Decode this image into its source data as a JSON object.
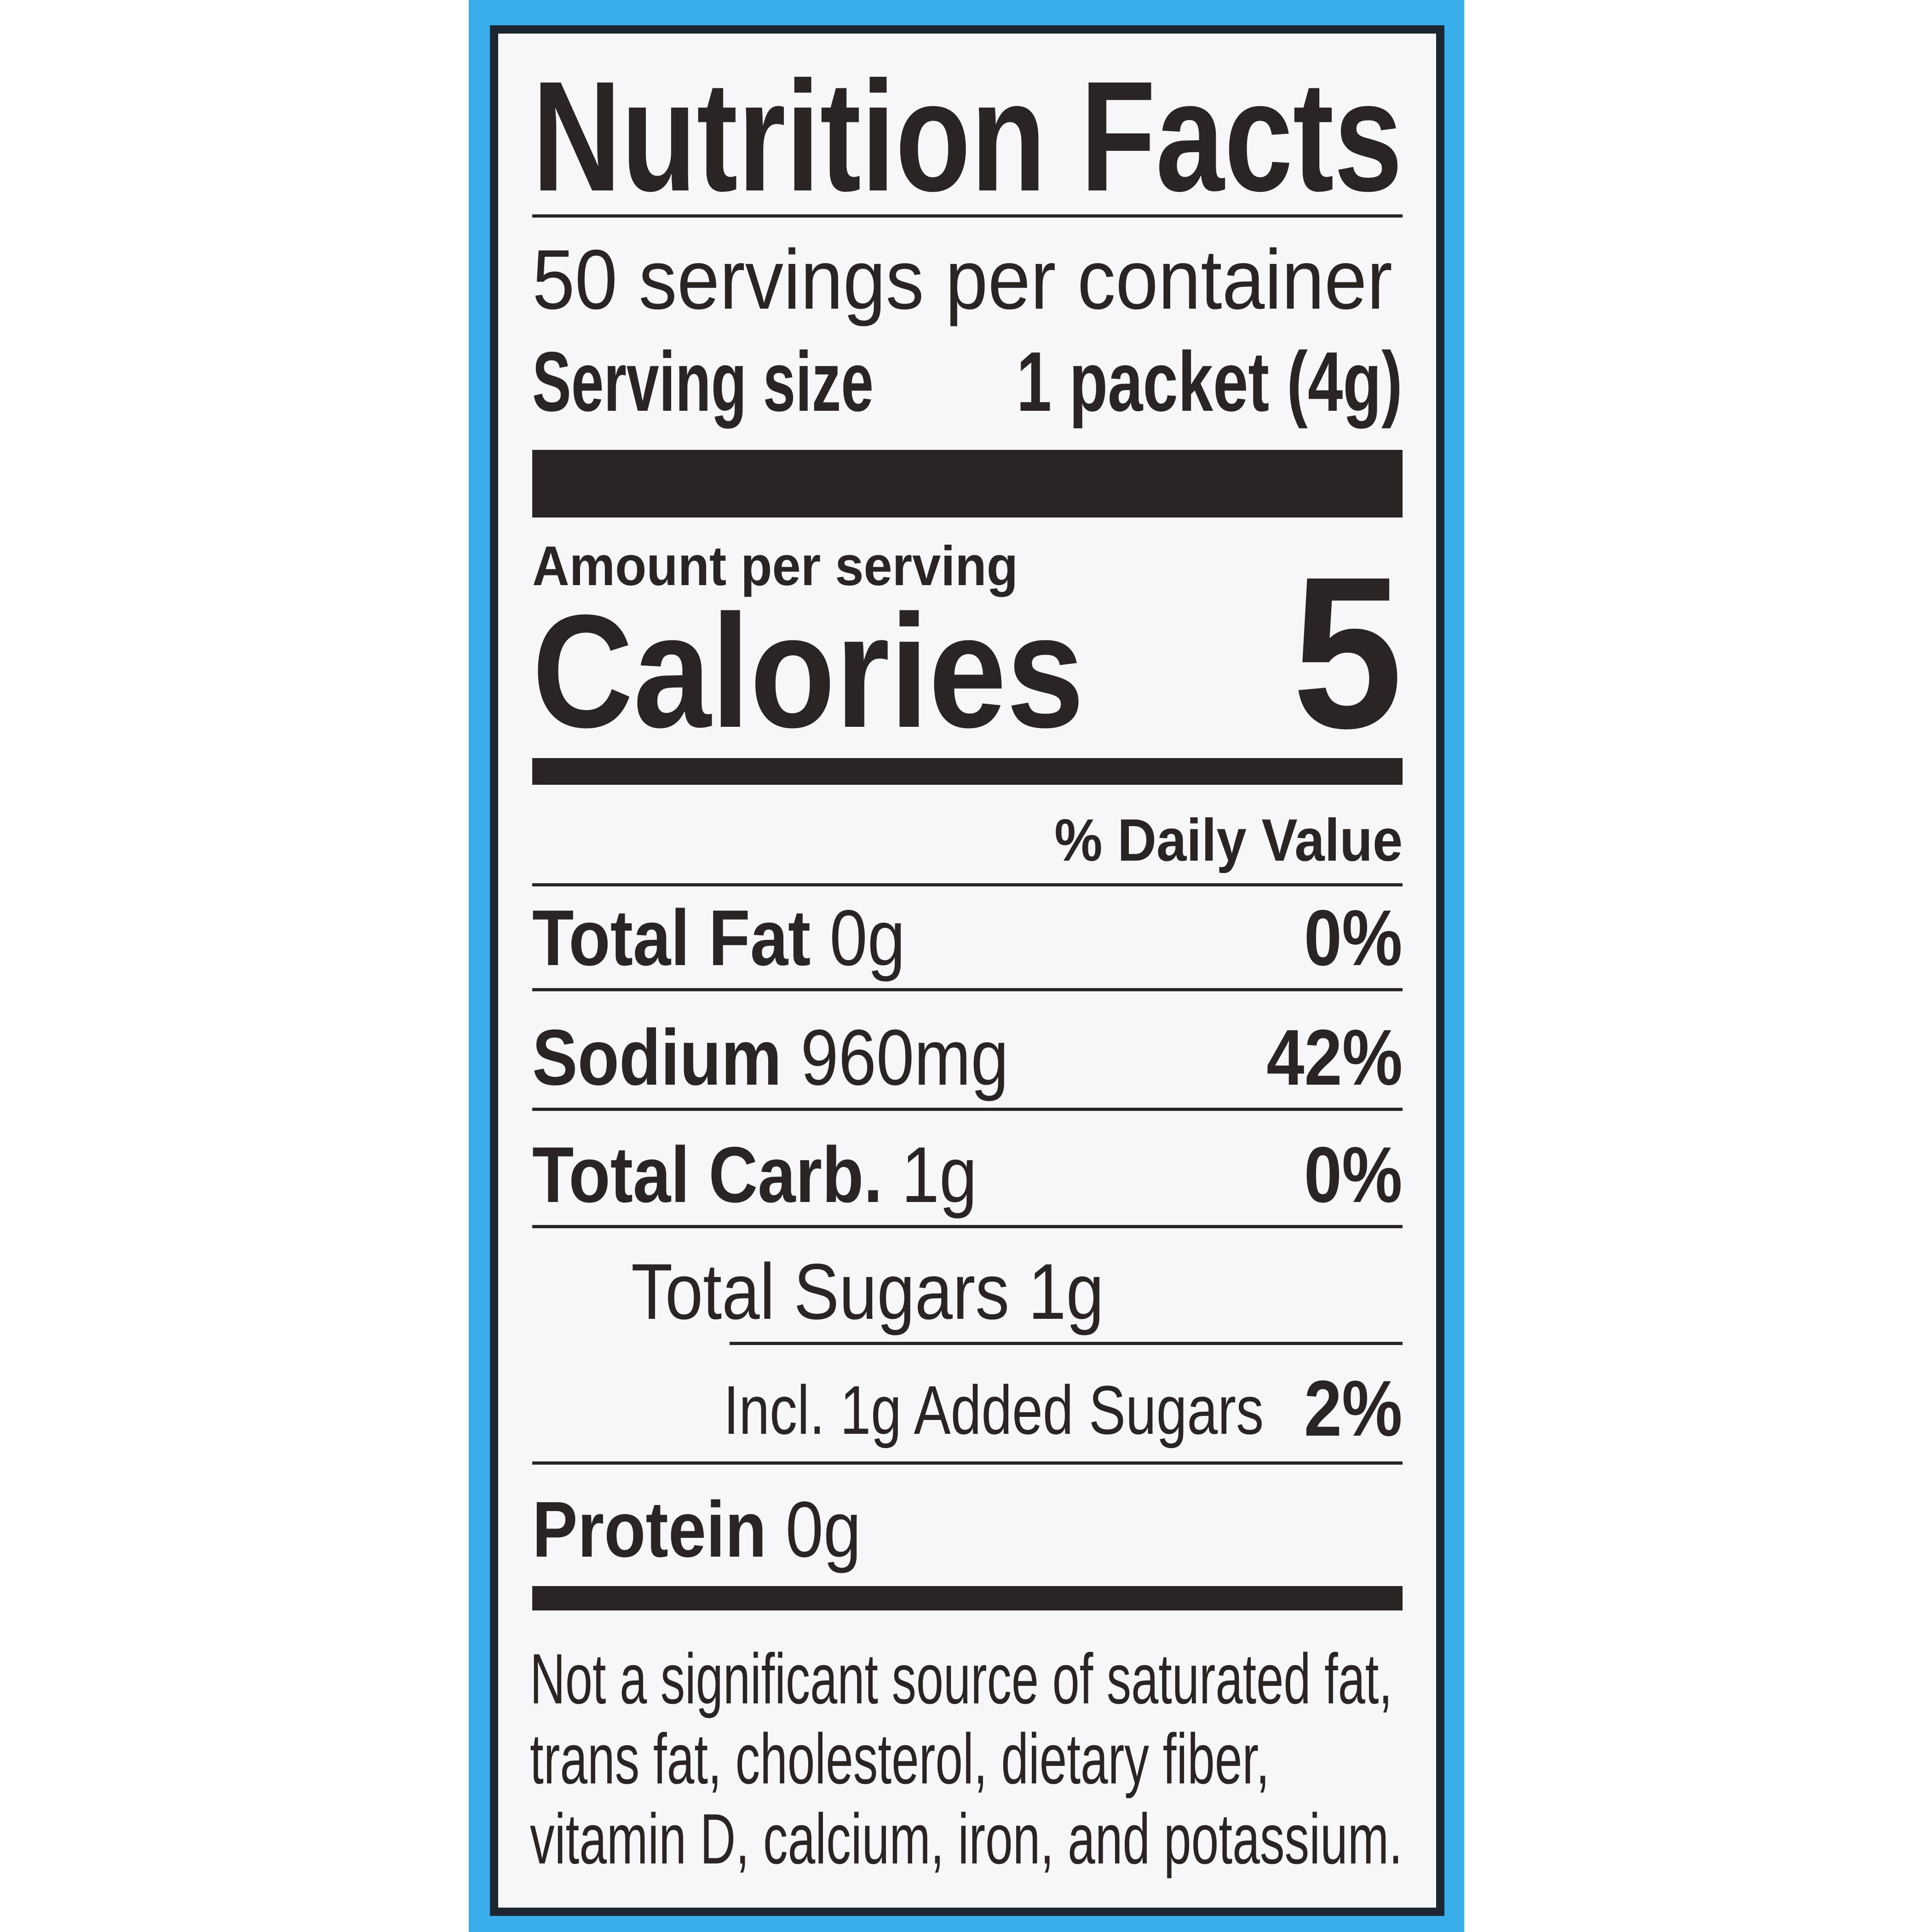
{
  "colors": {
    "panel_blue": "#3aaeea",
    "border": "#1c2631",
    "text": "#2a2424"
  },
  "title": "Nutrition Facts",
  "servings_per_container": "50 servings per container",
  "serving_size": {
    "label": "Serving size",
    "value": "1 packet (4g)"
  },
  "amount_per_serving": "Amount per serving",
  "calories": {
    "label": "Calories",
    "value": "5"
  },
  "daily_value_header": "% Daily Value",
  "nutrients": [
    {
      "name": "Total Fat",
      "amount": "0g",
      "dv": "0%"
    },
    {
      "name": "Sodium",
      "amount": "960mg",
      "dv": "42%"
    },
    {
      "name": "Total Carb.",
      "amount": "1g",
      "dv": "0%"
    },
    {
      "name": "Total Sugars",
      "amount": "1g",
      "dv": ""
    },
    {
      "name": "Incl. 1g Added Sugars",
      "amount": "",
      "dv": "2%"
    },
    {
      "name": "Protein",
      "amount": "0g",
      "dv": ""
    }
  ],
  "footnote": [
    "Not a significant source of saturated fat,",
    "trans fat, cholesterol, dietary fiber,",
    "vitamin D, calcium, iron, and potassium."
  ]
}
